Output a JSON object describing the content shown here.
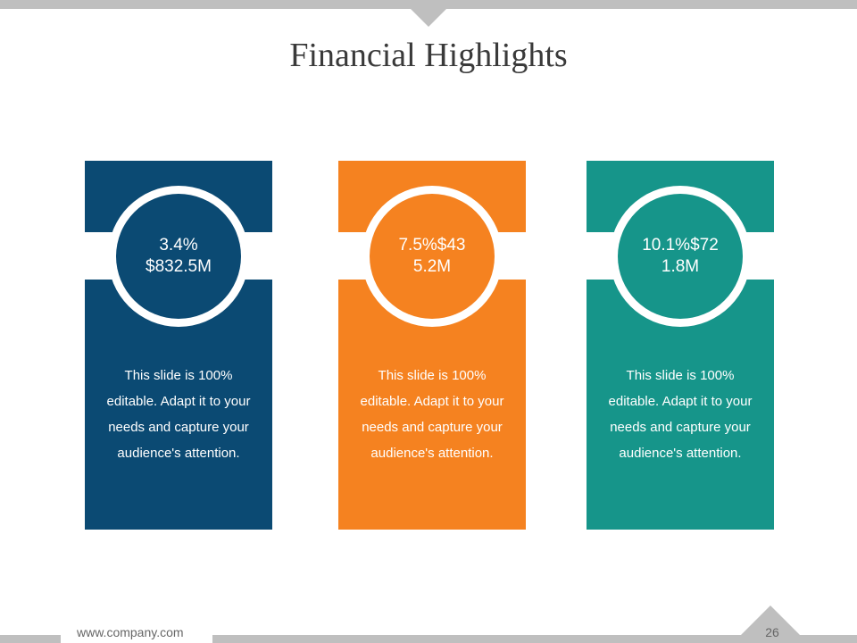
{
  "title": "Financial Highlights",
  "colors": {
    "blue": "#0b4a73",
    "orange": "#f58220",
    "teal": "#16958a"
  },
  "cards": [
    {
      "value": "3.4% $832.5M",
      "description": "This slide is 100% editable. Adapt it to your needs and capture your audience's attention."
    },
    {
      "value": "7.5%$43 5.2M",
      "description": "This slide is 100% editable. Adapt it to your needs and capture your audience's attention."
    },
    {
      "value": "10.1%$72 1.8M",
      "description": "This slide is 100% editable. Adapt it to your needs and capture your audience's attention."
    }
  ],
  "footer": {
    "url": "www.company.com",
    "page": "26"
  }
}
